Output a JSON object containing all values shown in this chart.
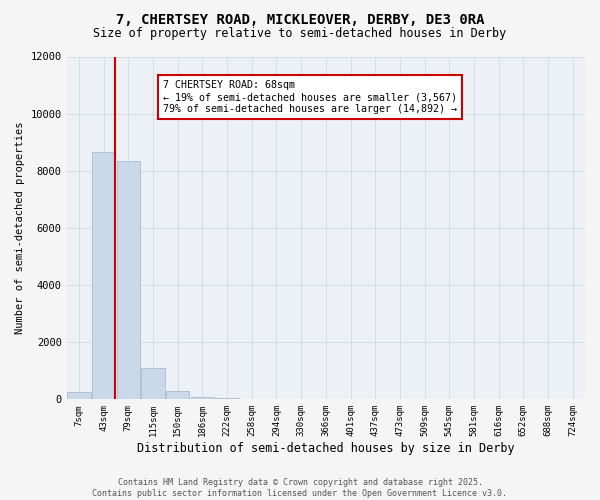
{
  "title": "7, CHERTSEY ROAD, MICKLEOVER, DERBY, DE3 0RA",
  "subtitle": "Size of property relative to semi-detached houses in Derby",
  "xlabel": "Distribution of semi-detached houses by size in Derby",
  "ylabel": "Number of semi-detached properties",
  "annotation_title": "7 CHERTSEY ROAD: 68sqm",
  "annotation_line1": "← 19% of semi-detached houses are smaller (3,567)",
  "annotation_line2": "79% of semi-detached houses are larger (14,892) →",
  "property_bin_index": 1,
  "bin_labels": [
    "7sqm",
    "43sqm",
    "79sqm",
    "115sqm",
    "150sqm",
    "186sqm",
    "222sqm",
    "258sqm",
    "294sqm",
    "330sqm",
    "366sqm",
    "401sqm",
    "437sqm",
    "473sqm",
    "509sqm",
    "545sqm",
    "581sqm",
    "616sqm",
    "652sqm",
    "688sqm",
    "724sqm"
  ],
  "values": [
    240,
    8650,
    8350,
    1080,
    290,
    95,
    45,
    4,
    0,
    0,
    0,
    0,
    0,
    0,
    0,
    0,
    0,
    0,
    0,
    0,
    0
  ],
  "bar_color": "#c9d9e9",
  "bar_edge_color": "#a8bccf",
  "vline_color": "#cc0000",
  "annotation_box_facecolor": "#ffffff",
  "annotation_box_edgecolor": "#cc0000",
  "grid_color": "#d4dce4",
  "plot_bg_color": "#edf1f5",
  "fig_bg_color": "#f5f5f5",
  "ylim": [
    0,
    12000
  ],
  "yticks": [
    0,
    2000,
    4000,
    6000,
    8000,
    10000,
    12000
  ],
  "footer_line1": "Contains HM Land Registry data © Crown copyright and database right 2025.",
  "footer_line2": "Contains public sector information licensed under the Open Government Licence v3.0."
}
